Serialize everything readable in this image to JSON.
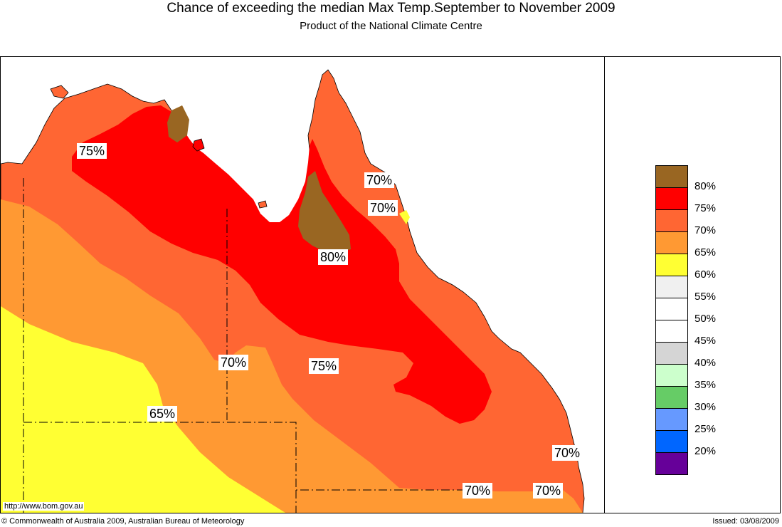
{
  "header": {
    "title": "Chance of exceeding the median Max Temp.September to November 2009",
    "subtitle": "Product of the National Climate Centre"
  },
  "map": {
    "contour_labels": [
      "75%",
      "70%",
      "70%",
      "80%",
      "70%",
      "75%",
      "65%",
      "70%",
      "70%",
      "70%"
    ],
    "colors": {
      "p80": "#996622",
      "p75": "#ff0000",
      "p70": "#ff6633",
      "p65": "#ff9933",
      "p60": "#ffff33",
      "ocean": "#ffffff",
      "border": "#000000"
    }
  },
  "legend": {
    "items": [
      {
        "label": "80%",
        "color": "#996622"
      },
      {
        "label": "75%",
        "color": "#ff0000"
      },
      {
        "label": "70%",
        "color": "#ff6633"
      },
      {
        "label": "65%",
        "color": "#ff9933"
      },
      {
        "label": "60%",
        "color": "#ffff33"
      },
      {
        "label": "55%",
        "color": "#f0f0f0"
      },
      {
        "label": "50%",
        "color": "#ffffff"
      },
      {
        "label": "45%",
        "color": "#ffffff"
      },
      {
        "label": "40%",
        "color": "#d5d5d5"
      },
      {
        "label": "35%",
        "color": "#ccffcc"
      },
      {
        "label": "30%",
        "color": "#66cc66"
      },
      {
        "label": "25%",
        "color": "#6699ff"
      },
      {
        "label": "20%",
        "color": "#0066ff"
      },
      {
        "extra": "#660099"
      }
    ]
  },
  "footer": {
    "url": "http://www.bom.gov.au",
    "copyright": "© Commonwealth of Australia 2009, Australian Bureau of Meteorology",
    "issued": "Issued: 03/08/2009"
  }
}
